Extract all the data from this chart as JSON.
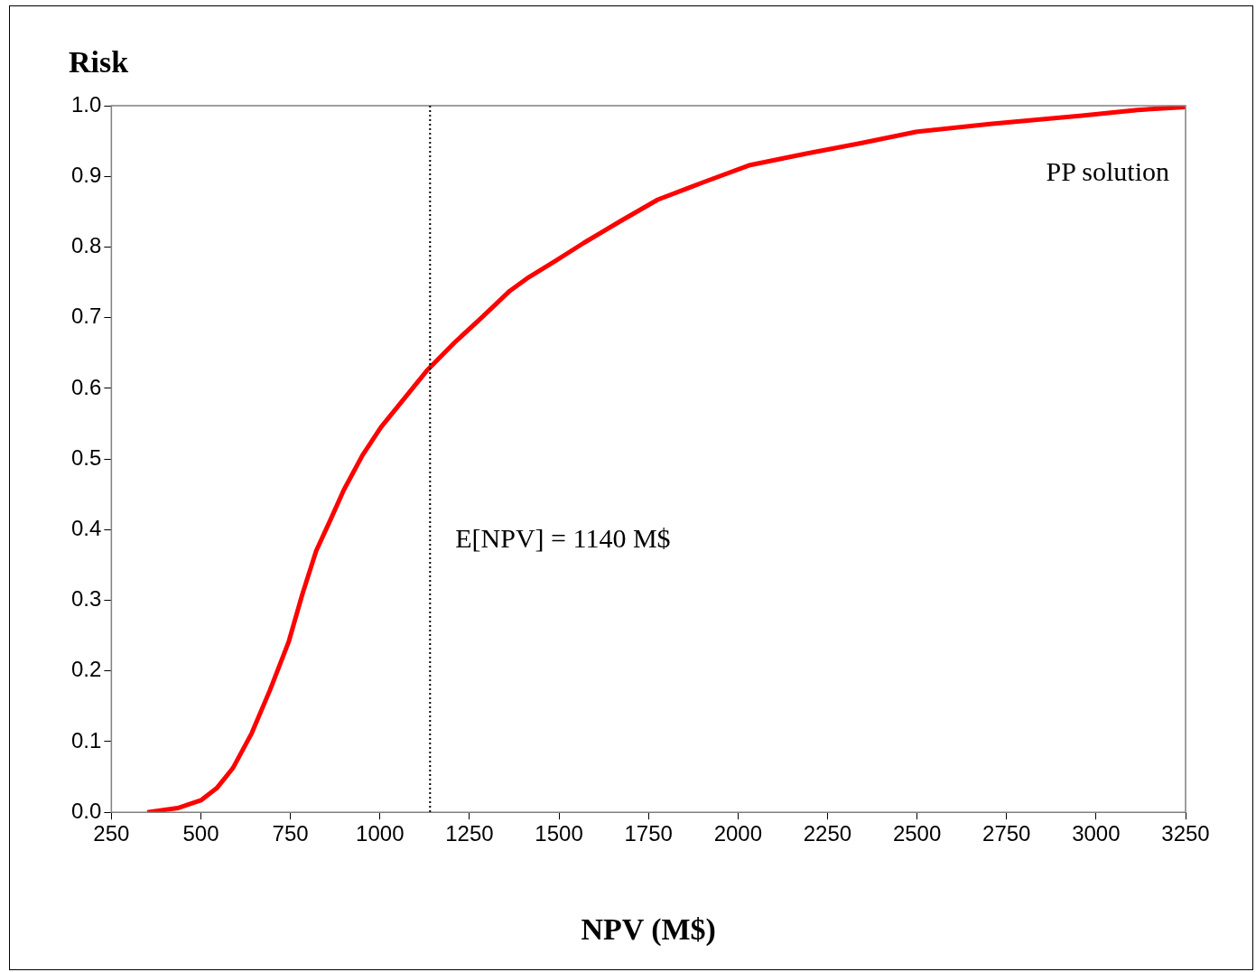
{
  "chart_data": {
    "type": "line",
    "ylabel": "Risk",
    "xlabel": "NPV (M$)",
    "annotations": [
      "PP solution"
    ],
    "x": [
      350,
      435,
      500,
      544,
      590,
      642,
      693,
      745,
      783,
      822,
      861,
      899,
      951,
      1003,
      1067,
      1131,
      1209,
      1286,
      1363,
      1415,
      1492,
      1570,
      1673,
      1776,
      1905,
      2034,
      2188,
      2343,
      2497,
      2704,
      2961,
      3116,
      3250
    ],
    "series": [
      {
        "color": "#ff0000",
        "values": [
          0,
          0.006,
          0.017,
          0.034,
          0.063,
          0.112,
          0.173,
          0.241,
          0.308,
          0.37,
          0.413,
          0.456,
          0.505,
          0.545,
          0.585,
          0.625,
          0.665,
          0.701,
          0.738,
          0.757,
          0.781,
          0.806,
          0.837,
          0.867,
          0.892,
          0.916,
          0.932,
          0.947,
          0.963,
          0.974,
          0.986,
          0.994,
          0.998
        ]
      }
    ],
    "xlim": [
      250,
      3250
    ],
    "xticks": [
      250,
      500,
      750,
      1000,
      1250,
      1500,
      1750,
      2000,
      2250,
      2500,
      2750,
      3000,
      3250
    ],
    "ylim": [
      0,
      1
    ],
    "yticks": [
      {
        "value": 0,
        "label": "0.0"
      },
      {
        "value": 0.1,
        "label": "0.1"
      },
      {
        "value": 0.2,
        "label": "0.2"
      },
      {
        "value": 0.3,
        "label": "0.3"
      },
      {
        "value": 0.4,
        "label": "0.4"
      },
      {
        "value": 0.5,
        "label": "0.5"
      },
      {
        "value": 0.6,
        "label": "0.6"
      },
      {
        "value": 0.7,
        "label": "0.7"
      },
      {
        "value": 0.8,
        "label": "0.8"
      },
      {
        "value": 0.9,
        "label": "0.9"
      },
      {
        "value": 1,
        "label": "1.0"
      }
    ],
    "ref_lines": [
      {
        "axis": "x",
        "value": 1140,
        "label": "E[NPV] = 1140 M$",
        "color": "#000000",
        "line_style": "dotted"
      }
    ],
    "grid": false,
    "legend": false,
    "marker": "none",
    "line_style": "solid"
  }
}
